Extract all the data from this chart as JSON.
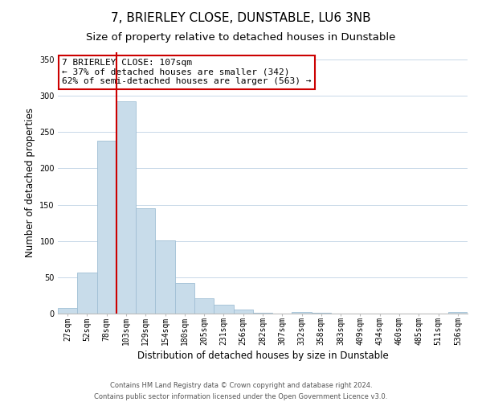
{
  "title": "7, BRIERLEY CLOSE, DUNSTABLE, LU6 3NB",
  "subtitle": "Size of property relative to detached houses in Dunstable",
  "xlabel": "Distribution of detached houses by size in Dunstable",
  "ylabel": "Number of detached properties",
  "bar_labels": [
    "27sqm",
    "52sqm",
    "78sqm",
    "103sqm",
    "129sqm",
    "154sqm",
    "180sqm",
    "205sqm",
    "231sqm",
    "256sqm",
    "282sqm",
    "307sqm",
    "332sqm",
    "358sqm",
    "383sqm",
    "409sqm",
    "434sqm",
    "460sqm",
    "485sqm",
    "511sqm",
    "536sqm"
  ],
  "bar_values": [
    8,
    57,
    238,
    292,
    145,
    101,
    42,
    21,
    12,
    6,
    1,
    0,
    2,
    1,
    0,
    0,
    0,
    0,
    0,
    0,
    2
  ],
  "bar_color": "#c8dcea",
  "bar_edge_color": "#a0bfd4",
  "vline_color": "#cc0000",
  "vline_linewidth": 1.5,
  "vline_bar_index": 3,
  "ylim": [
    0,
    360
  ],
  "yticks": [
    0,
    50,
    100,
    150,
    200,
    250,
    300,
    350
  ],
  "annotation_text": "7 BRIERLEY CLOSE: 107sqm\n← 37% of detached houses are smaller (342)\n62% of semi-detached houses are larger (563) →",
  "annotation_box_edgecolor": "#cc0000",
  "annotation_box_facecolor": "#ffffff",
  "footer_line1": "Contains HM Land Registry data © Crown copyright and database right 2024.",
  "footer_line2": "Contains public sector information licensed under the Open Government Licence v3.0.",
  "background_color": "#ffffff",
  "grid_color": "#c8d8e8",
  "title_fontsize": 11,
  "subtitle_fontsize": 9.5,
  "axis_label_fontsize": 8.5,
  "tick_fontsize": 7,
  "annotation_fontsize": 8,
  "footer_fontsize": 6
}
